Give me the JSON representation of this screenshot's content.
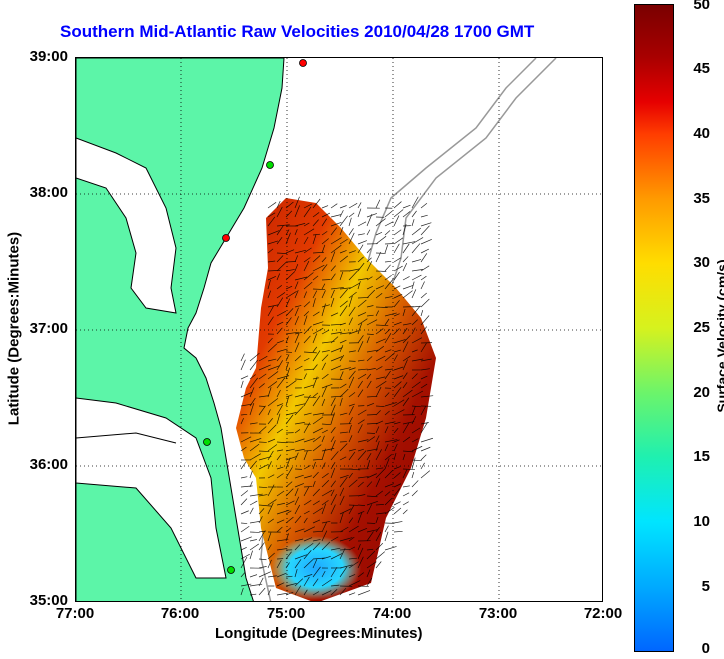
{
  "title": "Southern Mid-Atlantic Raw Velocities 2010/04/28 1700 GMT",
  "axes": {
    "xlabel": "Longitude (Degrees:Minutes)",
    "ylabel": "Latitude (Degrees:Minutes)",
    "xticks": [
      "77:00",
      "76:00",
      "75:00",
      "74:00",
      "73:00",
      "72:00"
    ],
    "yticks": [
      "39:00",
      "38:00",
      "37:00",
      "36:00",
      "35:00"
    ]
  },
  "colorbar": {
    "label": "Surface Velocity (cm/s)",
    "ticks": [
      "50",
      "45",
      "40",
      "35",
      "30",
      "25",
      "20",
      "15",
      "10",
      "5",
      "0"
    ],
    "colors": [
      "#0066ff",
      "#00e5ff",
      "#6cf46a",
      "#ffdd00",
      "#ff9a00",
      "#e60000",
      "#7a0000"
    ]
  },
  "map": {
    "land_color": "#5cf5a8",
    "coast_color": "#000000",
    "bathymetry_color": "#999999",
    "site_colors": [
      "#ff0000",
      "#00dd00"
    ]
  }
}
